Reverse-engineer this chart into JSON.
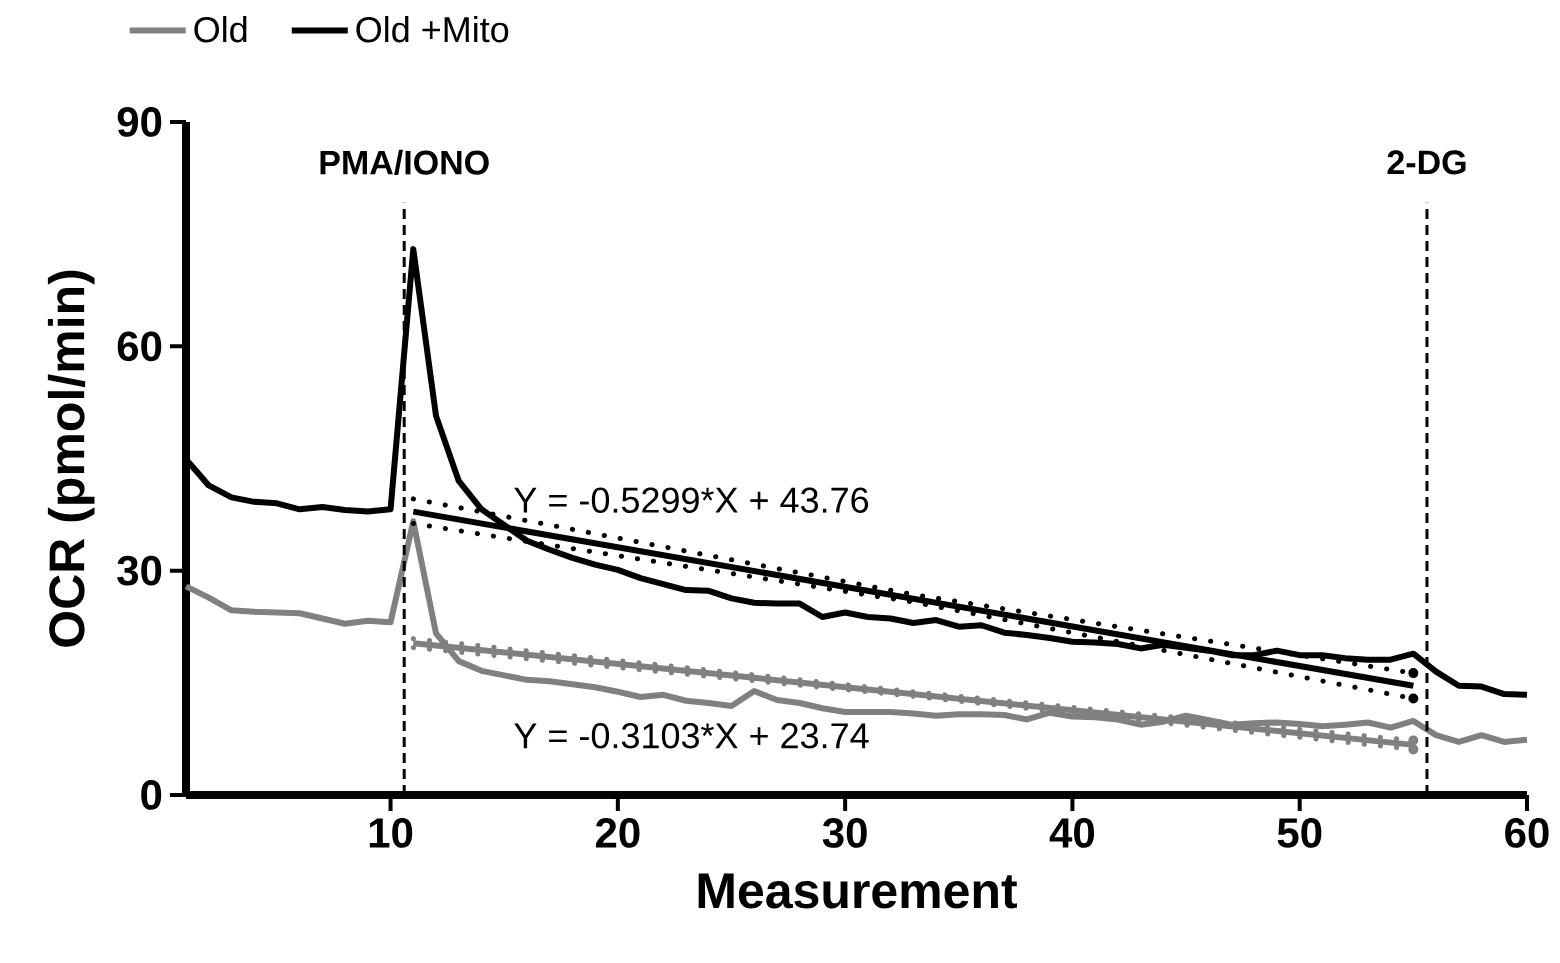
{
  "chart_data": {
    "type": "line",
    "xlabel": "Measurement",
    "ylabel": "OCR (pmol/min)",
    "x": [
      1,
      2,
      3,
      4,
      5,
      6,
      7,
      8,
      9,
      10,
      11,
      12,
      13,
      14,
      15,
      16,
      17,
      18,
      19,
      20,
      21,
      22,
      23,
      24,
      25,
      26,
      27,
      28,
      29,
      30,
      31,
      32,
      33,
      34,
      35,
      36,
      37,
      38,
      39,
      40,
      41,
      42,
      43,
      44,
      45,
      46,
      47,
      48,
      49,
      50,
      51,
      52,
      53,
      54,
      55,
      56,
      57,
      58,
      59,
      60
    ],
    "series": [
      {
        "name": "Old",
        "color": "#808080",
        "values": [
          27.9,
          26.4,
          24.7,
          24.5,
          24.4,
          24.3,
          23.6,
          22.9,
          23.3,
          23.1,
          36.6,
          21.6,
          17.9,
          16.6,
          16.0,
          15.4,
          15.2,
          14.8,
          14.4,
          13.8,
          13.1,
          13.4,
          12.6,
          12.3,
          11.9,
          13.9,
          12.7,
          12.3,
          11.6,
          11.1,
          11.1,
          11.1,
          10.9,
          10.6,
          10.8,
          10.8,
          10.7,
          10.1,
          11.0,
          10.5,
          10.4,
          10.1,
          9.4,
          9.8,
          10.6,
          10.0,
          9.4,
          9.6,
          9.7,
          9.5,
          9.2,
          9.4,
          9.7,
          9.0,
          9.9,
          8.0,
          7.1,
          8.0,
          7.1,
          7.4
        ]
      },
      {
        "name": "Old +Mito",
        "color": "#000000",
        "values": [
          44.9,
          41.4,
          39.8,
          39.2,
          39.0,
          38.2,
          38.5,
          38.1,
          37.9,
          38.2,
          73.0,
          50.7,
          42.0,
          38.2,
          36.1,
          34.0,
          32.8,
          31.7,
          30.8,
          30.1,
          29.0,
          28.2,
          27.4,
          27.3,
          26.3,
          25.7,
          25.6,
          25.6,
          23.8,
          24.4,
          23.8,
          23.6,
          23.0,
          23.4,
          22.5,
          22.7,
          21.7,
          21.4,
          21.0,
          20.5,
          20.4,
          20.2,
          19.6,
          20.1,
          19.7,
          19.3,
          18.7,
          18.7,
          19.3,
          18.7,
          18.7,
          18.3,
          18.1,
          18.1,
          18.9,
          16.5,
          14.6,
          14.5,
          13.5,
          13.4
        ]
      },
      {
        "type": "line",
        "color": "#808080",
        "x": [
          11,
          55
        ],
        "values": [
          20.3,
          6.7
        ]
      },
      {
        "type": "line",
        "color": "#808080",
        "line_style": "dotted",
        "x": [
          11,
          33,
          55
        ],
        "values": [
          19.7,
          13.2,
          6.1
        ]
      },
      {
        "type": "line",
        "color": "#808080",
        "line_style": "dotted",
        "x": [
          11,
          33,
          55
        ],
        "values": [
          20.9,
          13.8,
          7.3
        ]
      },
      {
        "type": "line",
        "color": "#000000",
        "x": [
          11,
          55
        ],
        "values": [
          37.9,
          14.6
        ]
      },
      {
        "type": "line",
        "color": "#000000",
        "line_style": "dotted",
        "x": [
          11,
          33,
          55
        ],
        "values": [
          36.3,
          25.8,
          12.9
        ]
      },
      {
        "type": "line",
        "color": "#000000",
        "line_style": "dotted",
        "x": [
          11,
          33,
          55
        ],
        "values": [
          39.6,
          26.8,
          16.3
        ]
      }
    ],
    "xlim": [
      1,
      60
    ],
    "xticks": [
      10,
      20,
      30,
      40,
      50,
      60
    ],
    "ylim": [
      0,
      90
    ],
    "yticks": [
      0,
      30,
      60,
      90
    ],
    "ref_lines": [
      {
        "axis": "x",
        "value": 10.6,
        "label": "PMA/IONO",
        "line_style": "dashed",
        "color": "#000000"
      },
      {
        "axis": "x",
        "value": 55.6,
        "label": "2-DG",
        "line_style": "dashed",
        "color": "#000000"
      }
    ],
    "annotations": [
      "Y = -0.5299*X + 43.76",
      "Y = -0.3103*X + 23.74"
    ],
    "grid": false,
    "legend": "top left",
    "line_style": "solid"
  }
}
